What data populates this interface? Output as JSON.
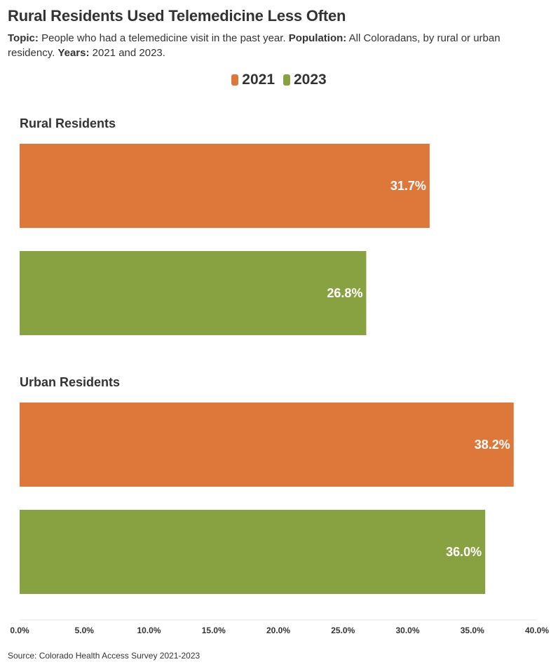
{
  "header": {
    "title": "Rural Residents Used Telemedicine Less Often",
    "topic_label": "Topic:",
    "topic_text": "People who had a telemedicine visit in the past year.",
    "population_label": "Population:",
    "population_text": "All Coloradans, by rural or urban residency.",
    "years_label": "Years:",
    "years_text": "2021 and 2023."
  },
  "source": "Source: Colorado Health Access Survey 2021-2023",
  "chart_data": {
    "type": "bar",
    "orientation": "horizontal",
    "categories": [
      "Rural Residents",
      "Urban Residents"
    ],
    "series": [
      {
        "name": "2021",
        "color": "#DE773A",
        "values": [
          31.7,
          38.2
        ],
        "labels": [
          "31.7%",
          "38.2%"
        ]
      },
      {
        "name": "2023",
        "color": "#88A141",
        "values": [
          26.8,
          36.0
        ],
        "labels": [
          "26.8%",
          "36.0%"
        ]
      }
    ],
    "xlim": [
      0,
      40
    ],
    "xticks": [
      0,
      5,
      10,
      15,
      20,
      25,
      30,
      35,
      40
    ],
    "xtick_labels": [
      "0.0%",
      "5.0%",
      "10.0%",
      "15.0%",
      "20.0%",
      "25.0%",
      "30.0%",
      "35.0%",
      "40.0%"
    ],
    "legend_position": "top-center",
    "grid": false
  }
}
